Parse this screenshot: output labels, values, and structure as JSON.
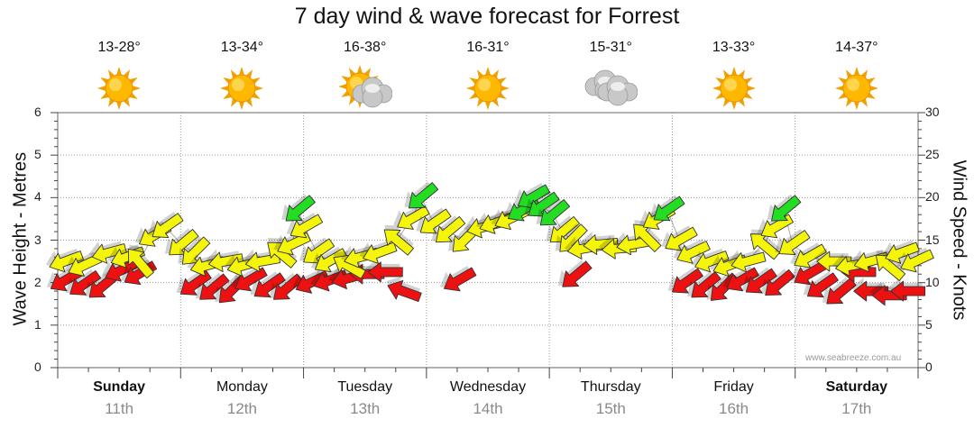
{
  "page": {
    "title": "7 day wind & wave forecast for Forrest",
    "credit": "www.seabreeze.com.au"
  },
  "days": [
    {
      "name": "Sunday",
      "date": "11th",
      "temp": "13-28°",
      "weather_icon": "sun-icon",
      "bold": true
    },
    {
      "name": "Monday",
      "date": "12th",
      "temp": "13-34°",
      "weather_icon": "sun-icon",
      "bold": false
    },
    {
      "name": "Tuesday",
      "date": "13th",
      "temp": "16-38°",
      "weather_icon": "sun-cloud-icon",
      "bold": false
    },
    {
      "name": "Wednesday",
      "date": "14th",
      "temp": "16-31°",
      "weather_icon": "sun-icon",
      "bold": false
    },
    {
      "name": "Thursday",
      "date": "15th",
      "temp": "15-31°",
      "weather_icon": "cloud-icon",
      "bold": false
    },
    {
      "name": "Friday",
      "date": "16th",
      "temp": "13-33°",
      "weather_icon": "sun-icon",
      "bold": false
    },
    {
      "name": "Saturday",
      "date": "17th",
      "temp": "14-37°",
      "weather_icon": "sun-icon",
      "bold": true
    }
  ],
  "chart_data": {
    "type": "scatter",
    "left_axis": {
      "label": "Wave Height - Metres",
      "min": 0,
      "max": 6,
      "ticks": [
        0,
        1,
        2,
        3,
        4,
        5,
        6
      ]
    },
    "right_axis": {
      "label": "Wind Speed - Knots",
      "min": 0,
      "max": 30,
      "ticks": [
        0,
        5,
        10,
        15,
        20,
        25,
        30
      ]
    },
    "x_categories": [
      "Sunday 11th",
      "Monday 12th",
      "Tuesday 13th",
      "Wednesday 14th",
      "Thursday 15th",
      "Friday 16th",
      "Saturday 17th"
    ],
    "grid": true,
    "colors": {
      "red": "#ee1111",
      "yellow": "#f5f50a",
      "green": "#22dd22",
      "outline": "#333333"
    },
    "wave_series": [
      {
        "x": 0.0,
        "y": 2.05,
        "dir": -30
      },
      {
        "x": 0.15,
        "y": 1.95,
        "dir": -35
      },
      {
        "x": 0.3,
        "y": 1.9,
        "dir": -40
      },
      {
        "x": 0.45,
        "y": 2.28,
        "dir": -25
      },
      {
        "x": 0.6,
        "y": 2.2,
        "dir": -30
      },
      {
        "x": 1.05,
        "y": 1.95,
        "dir": -35
      },
      {
        "x": 1.2,
        "y": 1.85,
        "dir": -40
      },
      {
        "x": 1.35,
        "y": 1.8,
        "dir": -45
      },
      {
        "x": 1.5,
        "y": 2.05,
        "dir": -30
      },
      {
        "x": 1.65,
        "y": 1.9,
        "dir": -35
      },
      {
        "x": 1.8,
        "y": 1.85,
        "dir": -40
      },
      {
        "x": 2.0,
        "y": 2.0,
        "dir": -25
      },
      {
        "x": 2.15,
        "y": 2.05,
        "dir": -20
      },
      {
        "x": 2.3,
        "y": 2.1,
        "dir": -15
      },
      {
        "x": 2.45,
        "y": 2.2,
        "dir": 0
      },
      {
        "x": 2.6,
        "y": 2.25,
        "dir": 0
      },
      {
        "x": 2.75,
        "y": 1.8,
        "dir": 20
      },
      {
        "x": 3.2,
        "y": 2.05,
        "dir": -30
      },
      {
        "x": 4.15,
        "y": 2.15,
        "dir": -40
      },
      {
        "x": 5.05,
        "y": 2.0,
        "dir": -35
      },
      {
        "x": 5.2,
        "y": 1.9,
        "dir": -40
      },
      {
        "x": 5.35,
        "y": 1.85,
        "dir": -45
      },
      {
        "x": 5.5,
        "y": 2.05,
        "dir": -30
      },
      {
        "x": 5.65,
        "y": 2.0,
        "dir": -35
      },
      {
        "x": 5.8,
        "y": 1.95,
        "dir": -40
      },
      {
        "x": 6.05,
        "y": 2.2,
        "dir": -30
      },
      {
        "x": 6.15,
        "y": 1.9,
        "dir": -35
      },
      {
        "x": 6.3,
        "y": 1.75,
        "dir": -40
      },
      {
        "x": 6.45,
        "y": 2.25,
        "dir": 0
      },
      {
        "x": 6.55,
        "y": 1.8,
        "dir": 0
      },
      {
        "x": 6.7,
        "y": 1.7,
        "dir": 0
      },
      {
        "x": 6.85,
        "y": 1.8,
        "dir": 0
      }
    ],
    "wind_series": [
      {
        "x": 0.0,
        "y": 12.5,
        "dir": -20,
        "c": "yellow"
      },
      {
        "x": 0.15,
        "y": 12.0,
        "dir": -25,
        "c": "yellow"
      },
      {
        "x": 0.35,
        "y": 13.5,
        "dir": -15,
        "c": "yellow"
      },
      {
        "x": 0.5,
        "y": 13.0,
        "dir": -20,
        "c": "yellow"
      },
      {
        "x": 0.6,
        "y": 12.5,
        "dir": 50,
        "c": "yellow"
      },
      {
        "x": 0.72,
        "y": 15.5,
        "dir": -30,
        "c": "yellow"
      },
      {
        "x": 0.82,
        "y": 16.5,
        "dir": -35,
        "c": "yellow"
      },
      {
        "x": 0.95,
        "y": 14.5,
        "dir": -40,
        "c": "yellow"
      },
      {
        "x": 1.05,
        "y": 13.5,
        "dir": -45,
        "c": "yellow"
      },
      {
        "x": 1.15,
        "y": 12.0,
        "dir": -15,
        "c": "yellow"
      },
      {
        "x": 1.3,
        "y": 12.5,
        "dir": -10,
        "c": "yellow"
      },
      {
        "x": 1.45,
        "y": 12.0,
        "dir": -15,
        "c": "yellow"
      },
      {
        "x": 1.6,
        "y": 12.5,
        "dir": -10,
        "c": "yellow"
      },
      {
        "x": 1.75,
        "y": 13.5,
        "dir": 40,
        "c": "yellow"
      },
      {
        "x": 1.85,
        "y": 14.5,
        "dir": -25,
        "c": "yellow"
      },
      {
        "x": 1.9,
        "y": 18.5,
        "dir": -40,
        "c": "green"
      },
      {
        "x": 1.95,
        "y": 16.5,
        "dir": -30,
        "c": "yellow"
      },
      {
        "x": 2.05,
        "y": 13.5,
        "dir": -35,
        "c": "yellow"
      },
      {
        "x": 2.15,
        "y": 12.5,
        "dir": -30,
        "c": "yellow"
      },
      {
        "x": 2.3,
        "y": 12.0,
        "dir": 30,
        "c": "yellow"
      },
      {
        "x": 2.4,
        "y": 13.0,
        "dir": -15,
        "c": "yellow"
      },
      {
        "x": 2.55,
        "y": 13.5,
        "dir": -20,
        "c": "yellow"
      },
      {
        "x": 2.7,
        "y": 15.0,
        "dir": 40,
        "c": "yellow"
      },
      {
        "x": 2.82,
        "y": 17.5,
        "dir": -30,
        "c": "yellow"
      },
      {
        "x": 2.9,
        "y": 20.0,
        "dir": -40,
        "c": "green"
      },
      {
        "x": 3.0,
        "y": 17.0,
        "dir": -35,
        "c": "yellow"
      },
      {
        "x": 3.12,
        "y": 16.0,
        "dir": -40,
        "c": "yellow"
      },
      {
        "x": 3.25,
        "y": 15.0,
        "dir": -45,
        "c": "yellow"
      },
      {
        "x": 3.4,
        "y": 16.5,
        "dir": -15,
        "c": "yellow"
      },
      {
        "x": 3.5,
        "y": 17.0,
        "dir": -20,
        "c": "yellow"
      },
      {
        "x": 3.62,
        "y": 17.5,
        "dir": -25,
        "c": "yellow"
      },
      {
        "x": 3.72,
        "y": 18.5,
        "dir": -30,
        "c": "green"
      },
      {
        "x": 3.8,
        "y": 20.0,
        "dir": -30,
        "c": "green"
      },
      {
        "x": 3.88,
        "y": 19.0,
        "dir": -35,
        "c": "green"
      },
      {
        "x": 3.97,
        "y": 18.0,
        "dir": -40,
        "c": "green"
      },
      {
        "x": 4.05,
        "y": 16.0,
        "dir": -40,
        "c": "yellow"
      },
      {
        "x": 4.12,
        "y": 15.0,
        "dir": -45,
        "c": "yellow"
      },
      {
        "x": 4.22,
        "y": 14.0,
        "dir": -10,
        "c": "yellow"
      },
      {
        "x": 4.35,
        "y": 14.5,
        "dir": -5,
        "c": "yellow"
      },
      {
        "x": 4.5,
        "y": 14.0,
        "dir": -5,
        "c": "yellow"
      },
      {
        "x": 4.62,
        "y": 14.5,
        "dir": -10,
        "c": "yellow"
      },
      {
        "x": 4.72,
        "y": 15.5,
        "dir": 45,
        "c": "yellow"
      },
      {
        "x": 4.82,
        "y": 17.5,
        "dir": -30,
        "c": "yellow"
      },
      {
        "x": 4.9,
        "y": 18.5,
        "dir": -35,
        "c": "green"
      },
      {
        "x": 5.0,
        "y": 15.0,
        "dir": -30,
        "c": "yellow"
      },
      {
        "x": 5.1,
        "y": 13.5,
        "dir": -25,
        "c": "yellow"
      },
      {
        "x": 5.25,
        "y": 12.5,
        "dir": -20,
        "c": "yellow"
      },
      {
        "x": 5.4,
        "y": 12.0,
        "dir": -20,
        "c": "yellow"
      },
      {
        "x": 5.55,
        "y": 12.5,
        "dir": -15,
        "c": "yellow"
      },
      {
        "x": 5.68,
        "y": 14.5,
        "dir": 40,
        "c": "yellow"
      },
      {
        "x": 5.78,
        "y": 16.5,
        "dir": -30,
        "c": "yellow"
      },
      {
        "x": 5.85,
        "y": 18.5,
        "dir": -40,
        "c": "green"
      },
      {
        "x": 5.92,
        "y": 14.5,
        "dir": -35,
        "c": "yellow"
      },
      {
        "x": 6.05,
        "y": 13.0,
        "dir": -30,
        "c": "yellow"
      },
      {
        "x": 6.25,
        "y": 12.5,
        "dir": 0,
        "c": "yellow"
      },
      {
        "x": 6.4,
        "y": 12.0,
        "dir": -10,
        "c": "yellow"
      },
      {
        "x": 6.55,
        "y": 12.5,
        "dir": -15,
        "c": "yellow"
      },
      {
        "x": 6.7,
        "y": 12.0,
        "dir": 40,
        "c": "yellow"
      },
      {
        "x": 6.8,
        "y": 13.5,
        "dir": -20,
        "c": "yellow"
      },
      {
        "x": 6.92,
        "y": 12.5,
        "dir": -25,
        "c": "yellow"
      }
    ]
  }
}
